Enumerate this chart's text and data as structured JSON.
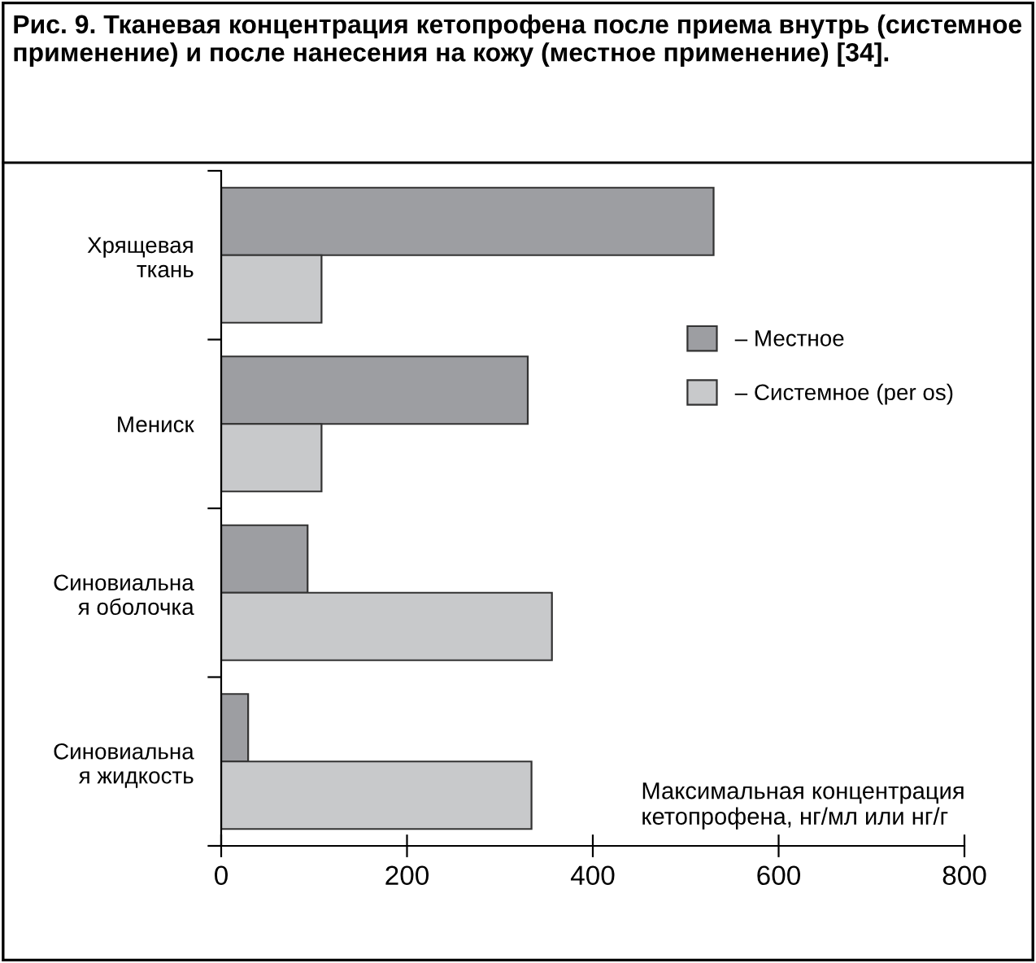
{
  "chart_data": {
    "type": "bar",
    "orientation": "horizontal",
    "title": "Рис. 9. Тканевая концентрация кетопрофена после приема внутрь (системное применение) и после нанесения на кожу (местное применение) [34].",
    "categories": [
      "Хрящевая\nткань",
      "Мениск",
      "Синовиальна\nя оболочка",
      "Синовиальна\nя жидкость"
    ],
    "series": [
      {
        "name": "– Местное",
        "color": "#9d9ea2",
        "values": [
          530,
          330,
          93,
          29
        ]
      },
      {
        "name": "– Системное (per os)",
        "color": "#c8c9cb",
        "values": [
          108,
          108,
          356,
          334
        ]
      }
    ],
    "xlabel": "Максимальная концентрация\nкетопрофена, нг/мл или нг/г",
    "xlim": [
      0,
      800
    ],
    "xticks": [
      0,
      200,
      400,
      600,
      800
    ],
    "grid": false,
    "legend": "right"
  }
}
